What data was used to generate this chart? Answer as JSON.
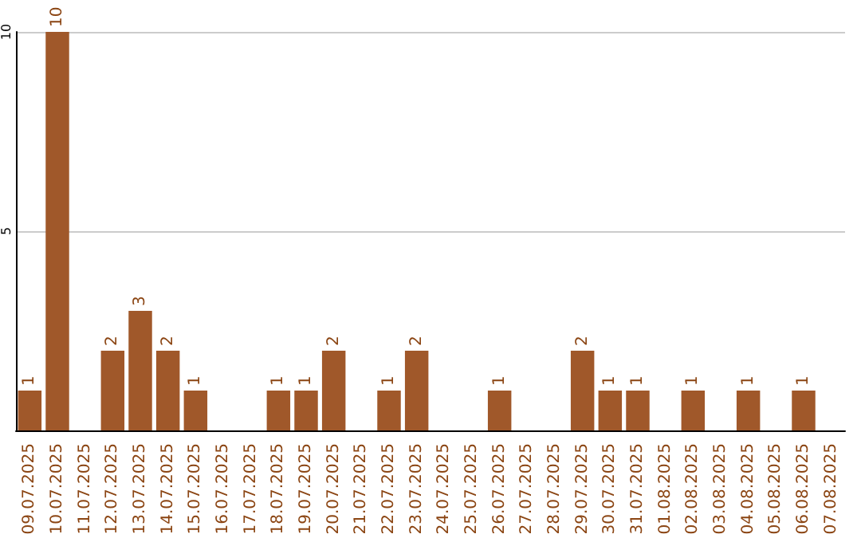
{
  "chart_data": {
    "type": "bar",
    "categories": [
      "09.07.2025",
      "10.07.2025",
      "11.07.2025",
      "12.07.2025",
      "13.07.2025",
      "14.07.2025",
      "15.07.2025",
      "16.07.2025",
      "17.07.2025",
      "18.07.2025",
      "19.07.2025",
      "20.07.2025",
      "21.07.2025",
      "22.07.2025",
      "23.07.2025",
      "24.07.2025",
      "25.07.2025",
      "26.07.2025",
      "27.07.2025",
      "28.07.2025",
      "29.07.2025",
      "30.07.2025",
      "31.07.2025",
      "01.08.2025",
      "02.08.2025",
      "03.08.2025",
      "04.08.2025",
      "05.08.2025",
      "06.08.2025",
      "07.08.2025"
    ],
    "values": [
      1,
      10,
      0,
      2,
      3,
      2,
      1,
      0,
      0,
      1,
      1,
      2,
      0,
      1,
      2,
      0,
      0,
      1,
      0,
      0,
      2,
      1,
      1,
      0,
      1,
      0,
      1,
      0,
      1,
      0
    ],
    "value_labels": [
      "1",
      "10",
      null,
      "2",
      "3",
      "2",
      "1",
      null,
      null,
      "1",
      "1",
      "2",
      null,
      "1",
      "2",
      null,
      null,
      "1",
      null,
      null,
      "2",
      "1",
      "1",
      null,
      "1",
      null,
      "1",
      null,
      "1",
      null
    ],
    "color": "#a0582a",
    "ylim": [
      0,
      10
    ],
    "yticks": [
      {
        "value": 0,
        "label": null
      },
      5,
      10
    ],
    "grid": "y"
  }
}
